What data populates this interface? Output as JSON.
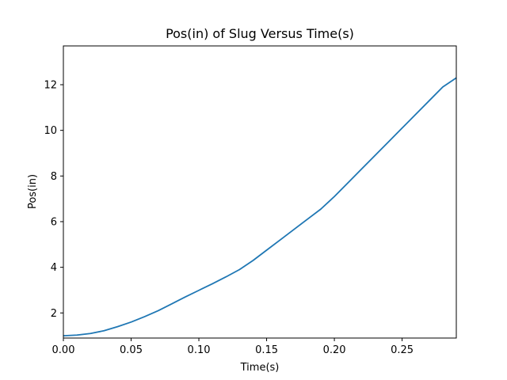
{
  "chart_data": {
    "type": "line",
    "title": "Pos(in) of Slug Versus Time(s)",
    "xlabel": "Time(s)",
    "ylabel": "Pos(in)",
    "xlim": [
      0.0,
      0.29
    ],
    "ylim": [
      0.9,
      13.7
    ],
    "grid": false,
    "xticks": [
      0.0,
      0.05,
      0.1,
      0.15,
      0.2,
      0.25
    ],
    "xtick_labels": [
      "0.00",
      "0.05",
      "0.10",
      "0.15",
      "0.20",
      "0.25"
    ],
    "yticks": [
      2,
      4,
      6,
      8,
      10,
      12
    ],
    "ytick_labels": [
      "2",
      "4",
      "6",
      "8",
      "10",
      "12"
    ],
    "line_color": "#1f77b4",
    "series": [
      {
        "x": [
          0.0,
          0.01,
          0.02,
          0.03,
          0.04,
          0.05,
          0.06,
          0.07,
          0.08,
          0.09,
          0.1,
          0.11,
          0.12,
          0.13,
          0.14,
          0.15,
          0.16,
          0.17,
          0.18,
          0.19,
          0.2,
          0.21,
          0.22,
          0.23,
          0.24,
          0.25,
          0.26,
          0.27,
          0.28,
          0.29
        ],
        "y": [
          1.0,
          1.03,
          1.1,
          1.22,
          1.4,
          1.6,
          1.84,
          2.1,
          2.4,
          2.7,
          2.99,
          3.28,
          3.58,
          3.9,
          4.3,
          4.75,
          5.2,
          5.65,
          6.1,
          6.55,
          7.1,
          7.7,
          8.3,
          8.9,
          9.5,
          10.1,
          10.7,
          11.3,
          11.9,
          12.3
        ]
      }
    ]
  }
}
